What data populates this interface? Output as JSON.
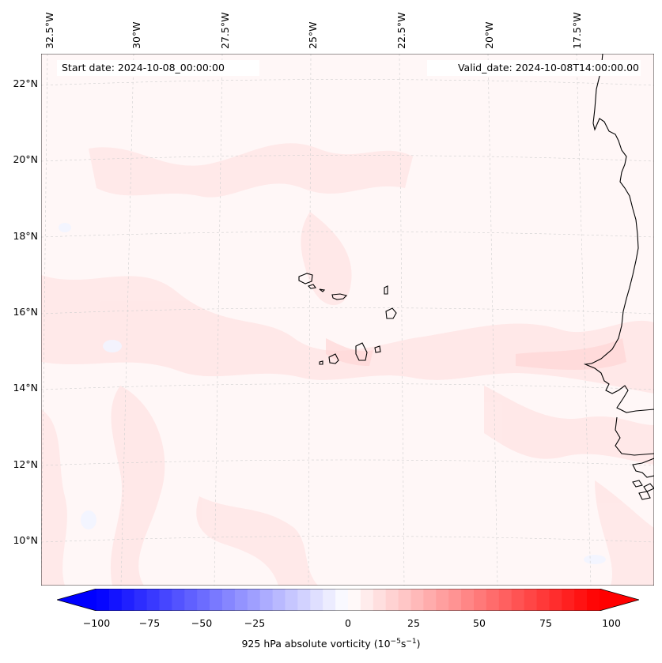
{
  "map": {
    "start_date": "Start date: 2024-10-08_00:00:00",
    "valid_date": "Valid_date: 2024-10-08T14:00:00.00",
    "longitude_labels": [
      "32.5°W",
      "30°W",
      "27.5°W",
      "25°W",
      "22.5°W",
      "20°W",
      "17.5°W"
    ],
    "latitude_labels": [
      "22°N",
      "20°N",
      "18°N",
      "16°N",
      "14°N",
      "12°N",
      "10°N"
    ],
    "colorbar_label_prefix": "925 hPa absolute vorticity (10",
    "colorbar_label_exp1": "−5",
    "colorbar_label_mid": "s",
    "colorbar_label_exp2": "−1",
    "colorbar_label_suffix": ")",
    "colorbar_ticks": [
      "−100",
      "−75",
      "−50",
      "−25",
      "0",
      "25",
      "50",
      "75",
      "100"
    ],
    "colorbar_min": -100,
    "colorbar_max": 100,
    "colorbar_step": 5,
    "colors": {
      "negative_end": "#0000ff",
      "zero": "#ffffff",
      "positive_end": "#ff0000",
      "field_background": "#fff6f6",
      "coastline": "#000000",
      "gridline": "#c8c8c8"
    },
    "lon_values": [
      -32.5,
      -30,
      -27.5,
      -25,
      -22.5,
      -20,
      -17.5
    ],
    "lat_values": [
      22,
      20,
      18,
      16,
      14,
      12,
      10
    ]
  }
}
